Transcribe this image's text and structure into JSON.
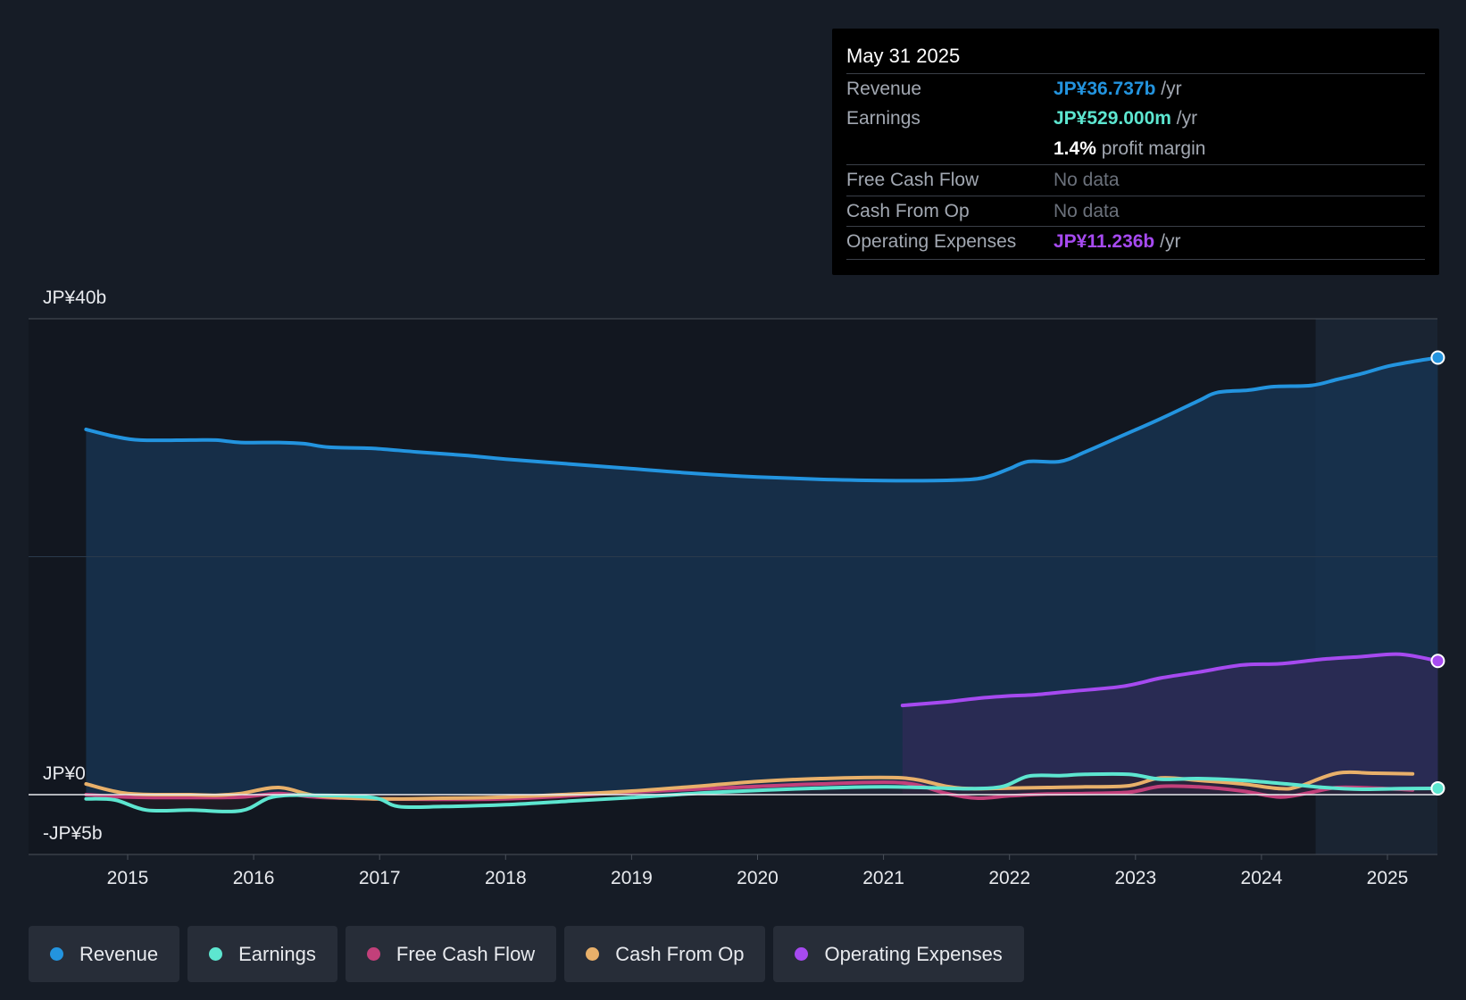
{
  "chart_data": {
    "type": "area",
    "title": "",
    "y_axis": {
      "top_label": "JP¥40b",
      "zero_label": "JP¥0",
      "bottom_label": "-JP¥5b",
      "ylim_billions": [
        -5,
        40
      ]
    },
    "x_axis": {
      "ticks": [
        "2015",
        "2016",
        "2017",
        "2018",
        "2019",
        "2020",
        "2021",
        "2022",
        "2023",
        "2024",
        "2025"
      ],
      "xlim_years": [
        2014.25,
        2025.4
      ]
    },
    "forecast_start_year": 2024.43,
    "series": [
      {
        "name": "Revenue",
        "color": "#2394df",
        "fill": "#173250",
        "points": [
          [
            2014.67,
            30.7
          ],
          [
            2014.9,
            30.1
          ],
          [
            2015.1,
            29.8
          ],
          [
            2015.5,
            29.8
          ],
          [
            2015.7,
            29.8
          ],
          [
            2015.9,
            29.6
          ],
          [
            2016.2,
            29.6
          ],
          [
            2016.4,
            29.5
          ],
          [
            2016.6,
            29.2
          ],
          [
            2016.95,
            29.1
          ],
          [
            2017.3,
            28.8
          ],
          [
            2017.7,
            28.5
          ],
          [
            2018.0,
            28.2
          ],
          [
            2018.5,
            27.8
          ],
          [
            2019.0,
            27.4
          ],
          [
            2019.5,
            27.0
          ],
          [
            2020.0,
            26.7
          ],
          [
            2020.5,
            26.5
          ],
          [
            2021.0,
            26.4
          ],
          [
            2021.4,
            26.4
          ],
          [
            2021.7,
            26.5
          ],
          [
            2021.85,
            26.8
          ],
          [
            2022.0,
            27.4
          ],
          [
            2022.15,
            28.0
          ],
          [
            2022.4,
            28.0
          ],
          [
            2022.6,
            28.8
          ],
          [
            2022.9,
            30.2
          ],
          [
            2023.2,
            31.6
          ],
          [
            2023.5,
            33.1
          ],
          [
            2023.65,
            33.8
          ],
          [
            2023.9,
            34.0
          ],
          [
            2024.1,
            34.3
          ],
          [
            2024.4,
            34.4
          ],
          [
            2024.6,
            34.9
          ],
          [
            2024.8,
            35.4
          ],
          [
            2025.0,
            36.0
          ],
          [
            2025.2,
            36.4
          ],
          [
            2025.4,
            36.737
          ]
        ]
      },
      {
        "name": "Earnings",
        "color": "#5de6d0",
        "points": [
          [
            2014.67,
            -0.35
          ],
          [
            2014.9,
            -0.45
          ],
          [
            2015.15,
            -1.3
          ],
          [
            2015.5,
            -1.3
          ],
          [
            2015.9,
            -1.35
          ],
          [
            2016.15,
            -0.2
          ],
          [
            2016.5,
            -0.05
          ],
          [
            2016.95,
            -0.25
          ],
          [
            2017.15,
            -1.0
          ],
          [
            2017.5,
            -1.0
          ],
          [
            2018.0,
            -0.85
          ],
          [
            2018.5,
            -0.55
          ],
          [
            2019.0,
            -0.25
          ],
          [
            2019.5,
            0.1
          ],
          [
            2020.0,
            0.35
          ],
          [
            2020.5,
            0.55
          ],
          [
            2021.0,
            0.65
          ],
          [
            2021.3,
            0.6
          ],
          [
            2021.7,
            0.5
          ],
          [
            2021.95,
            0.7
          ],
          [
            2022.15,
            1.55
          ],
          [
            2022.4,
            1.6
          ],
          [
            2022.6,
            1.7
          ],
          [
            2022.95,
            1.7
          ],
          [
            2023.2,
            1.3
          ],
          [
            2023.5,
            1.35
          ],
          [
            2023.85,
            1.2
          ],
          [
            2024.2,
            0.9
          ],
          [
            2024.5,
            0.6
          ],
          [
            2024.8,
            0.45
          ],
          [
            2025.1,
            0.5
          ],
          [
            2025.4,
            0.529
          ]
        ]
      },
      {
        "name": "Free Cash Flow",
        "color": "#c2407a",
        "points": [
          [
            2014.67,
            0.0
          ],
          [
            2015.0,
            -0.2
          ],
          [
            2015.5,
            -0.25
          ],
          [
            2015.9,
            -0.2
          ],
          [
            2016.2,
            0.1
          ],
          [
            2016.5,
            -0.2
          ],
          [
            2017.0,
            -0.35
          ],
          [
            2018.0,
            -0.35
          ],
          [
            2019.0,
            0.2
          ],
          [
            2020.0,
            0.7
          ],
          [
            2020.5,
            0.9
          ],
          [
            2021.15,
            1.0
          ],
          [
            2021.5,
            0.1
          ],
          [
            2021.75,
            -0.3
          ],
          [
            2022.0,
            -0.1
          ],
          [
            2022.3,
            0.05
          ],
          [
            2022.6,
            0.1
          ],
          [
            2022.95,
            0.2
          ],
          [
            2023.2,
            0.7
          ],
          [
            2023.5,
            0.65
          ],
          [
            2023.85,
            0.3
          ],
          [
            2024.15,
            -0.2
          ],
          [
            2024.4,
            0.2
          ],
          [
            2024.6,
            0.6
          ],
          [
            2024.9,
            0.55
          ],
          [
            2025.2,
            0.4
          ]
        ]
      },
      {
        "name": "Cash From Op",
        "color": "#e8b06a",
        "points": [
          [
            2014.67,
            0.9
          ],
          [
            2015.0,
            0.1
          ],
          [
            2015.5,
            0.0
          ],
          [
            2015.7,
            -0.05
          ],
          [
            2015.9,
            0.1
          ],
          [
            2016.2,
            0.6
          ],
          [
            2016.5,
            -0.1
          ],
          [
            2016.95,
            -0.35
          ],
          [
            2017.5,
            -0.3
          ],
          [
            2018.0,
            -0.2
          ],
          [
            2019.0,
            0.3
          ],
          [
            2020.0,
            1.1
          ],
          [
            2020.5,
            1.35
          ],
          [
            2021.15,
            1.4
          ],
          [
            2021.5,
            0.7
          ],
          [
            2021.7,
            0.5
          ],
          [
            2022.0,
            0.55
          ],
          [
            2022.3,
            0.6
          ],
          [
            2022.6,
            0.65
          ],
          [
            2022.95,
            0.75
          ],
          [
            2023.2,
            1.4
          ],
          [
            2023.5,
            1.2
          ],
          [
            2023.85,
            0.9
          ],
          [
            2024.15,
            0.5
          ],
          [
            2024.3,
            0.7
          ],
          [
            2024.6,
            1.8
          ],
          [
            2024.9,
            1.8
          ],
          [
            2025.2,
            1.75
          ]
        ]
      },
      {
        "name": "Operating Expenses",
        "color": "#a64af0",
        "fill": "#2b2b54",
        "points": [
          [
            2021.15,
            7.5
          ],
          [
            2021.5,
            7.8
          ],
          [
            2021.75,
            8.1
          ],
          [
            2022.0,
            8.3
          ],
          [
            2022.2,
            8.4
          ],
          [
            2022.5,
            8.7
          ],
          [
            2022.9,
            9.1
          ],
          [
            2023.2,
            9.8
          ],
          [
            2023.5,
            10.3
          ],
          [
            2023.85,
            10.9
          ],
          [
            2024.15,
            11.0
          ],
          [
            2024.5,
            11.4
          ],
          [
            2024.8,
            11.6
          ],
          [
            2025.1,
            11.8
          ],
          [
            2025.4,
            11.236
          ]
        ]
      }
    ]
  },
  "tooltip": {
    "date": "May 31 2025",
    "rows": [
      {
        "label": "Revenue",
        "value": "JP¥36.737b",
        "unit": "/yr",
        "color": "#2394df"
      },
      {
        "label": "Earnings",
        "value": "JP¥529.000m",
        "unit": "/yr",
        "color": "#5de6d0"
      },
      {
        "label": "",
        "value": "1.4%",
        "unit": "profit margin",
        "color": "#ffffff"
      },
      {
        "label": "Free Cash Flow",
        "value": "No data",
        "unit": "",
        "color": "nodata"
      },
      {
        "label": "Cash From Op",
        "value": "No data",
        "unit": "",
        "color": "nodata"
      },
      {
        "label": "Operating Expenses",
        "value": "JP¥11.236b",
        "unit": "/yr",
        "color": "#a64af0"
      }
    ]
  },
  "legend": [
    {
      "label": "Revenue",
      "color": "#2394df"
    },
    {
      "label": "Earnings",
      "color": "#5de6d0"
    },
    {
      "label": "Free Cash Flow",
      "color": "#c2407a"
    },
    {
      "label": "Cash From Op",
      "color": "#e8b06a"
    },
    {
      "label": "Operating Expenses",
      "color": "#a64af0"
    }
  ]
}
